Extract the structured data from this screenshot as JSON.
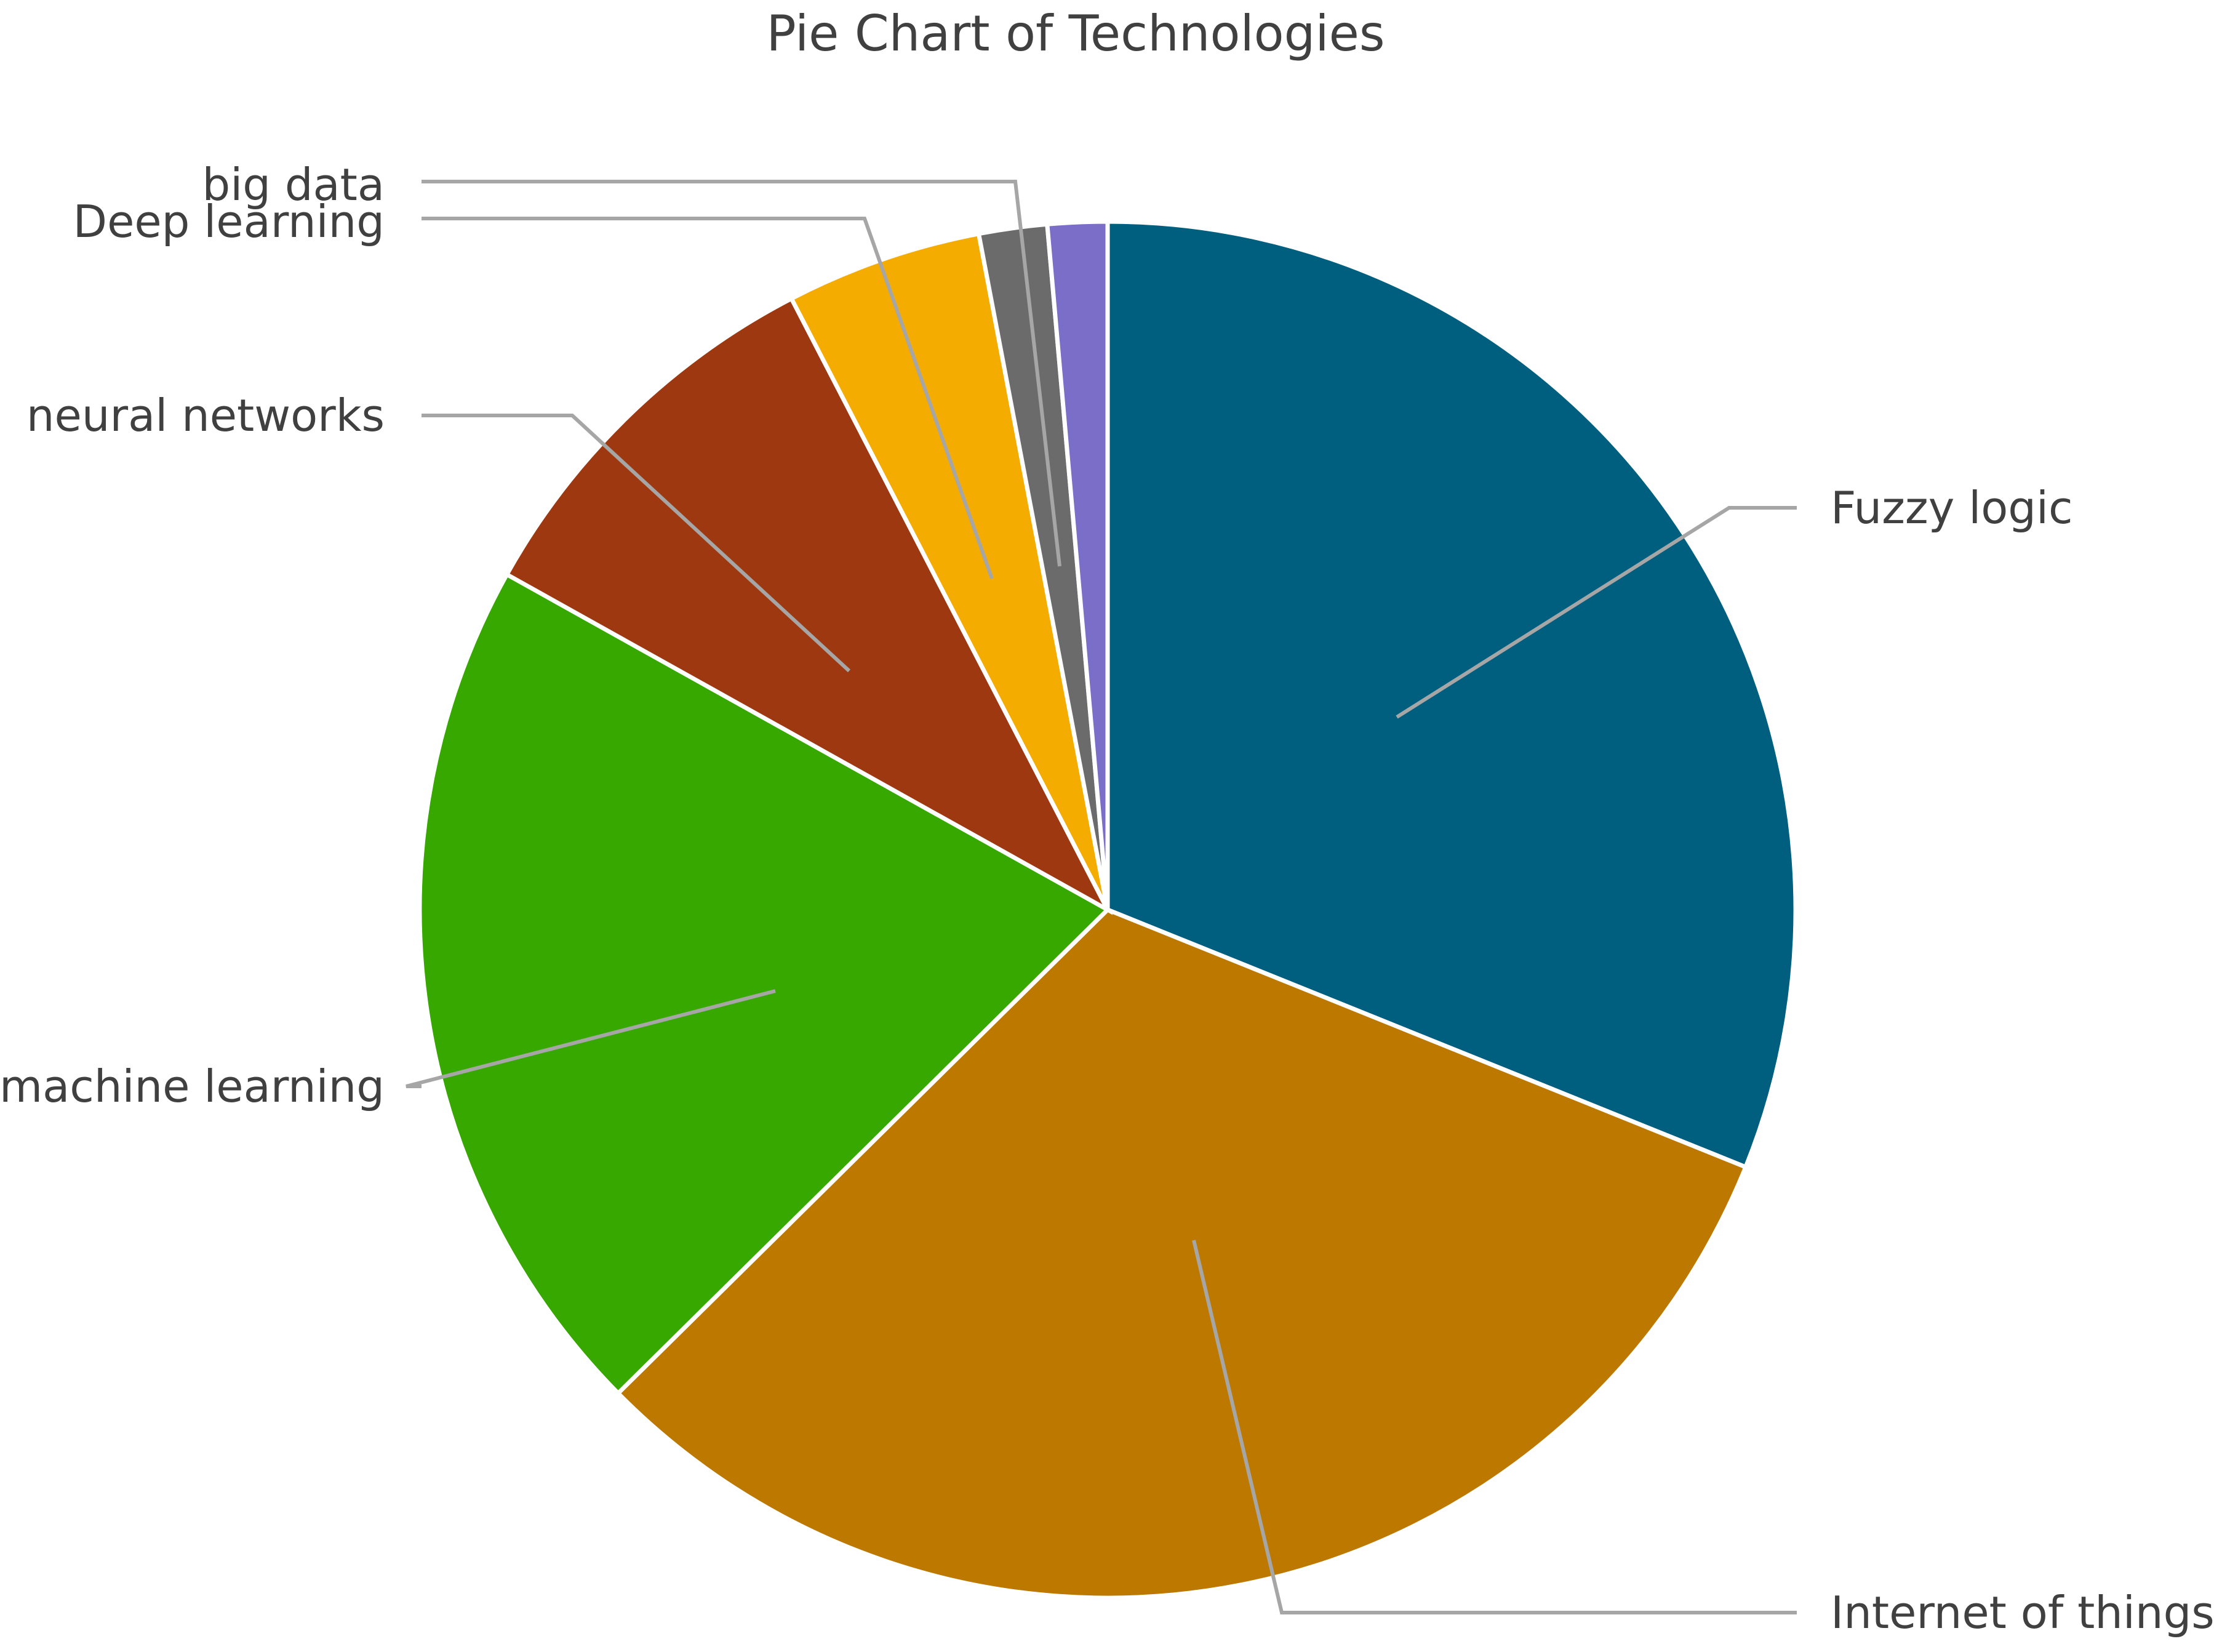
{
  "chart_data": {
    "type": "pie",
    "title": "Pie Chart of Technologies",
    "slices": [
      {
        "label": "Fuzzy logic",
        "value": 31.1,
        "color": "#005f7f"
      },
      {
        "label": "Internet of things",
        "value": 31.5,
        "color": "#bd7800"
      },
      {
        "label": "machine learning",
        "value": 20.5,
        "color": "#37a800"
      },
      {
        "label": "neural networks",
        "value": 9.3,
        "color": "#9e3810"
      },
      {
        "label": "Deep learning",
        "value": 4.6,
        "color": "#f5ac00"
      },
      {
        "label": "big data",
        "value": 1.6,
        "color": "#6b6b6b"
      },
      {
        "label": "",
        "value": 1.4,
        "color": "#7b6ec8"
      }
    ],
    "legend": "none (slice labels with leader lines)"
  }
}
